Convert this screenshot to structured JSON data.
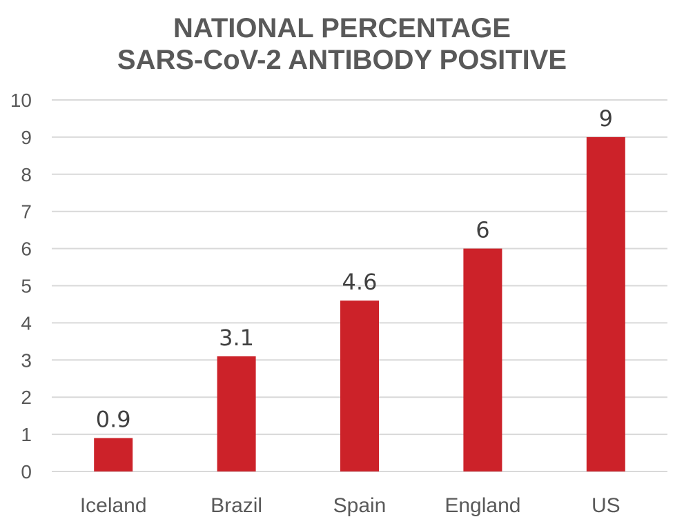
{
  "chart_data": {
    "type": "bar",
    "title_lines": [
      "NATIONAL PERCENTAGE",
      "SARS-CoV-2 ANTIBODY POSITIVE"
    ],
    "categories": [
      "Iceland",
      "Brazil",
      "Spain",
      "England",
      "US"
    ],
    "values": [
      0.9,
      3.1,
      4.6,
      6,
      9
    ],
    "data_labels": [
      "0.9",
      "3.1",
      "4.6",
      "6",
      "9"
    ],
    "ylim": [
      0,
      10
    ],
    "yticks": [
      0,
      1,
      2,
      3,
      4,
      5,
      6,
      7,
      8,
      9,
      10
    ],
    "grid": true,
    "legend": "none",
    "bar_color": "#cc2229",
    "grid_color": "#d9d9d9"
  }
}
